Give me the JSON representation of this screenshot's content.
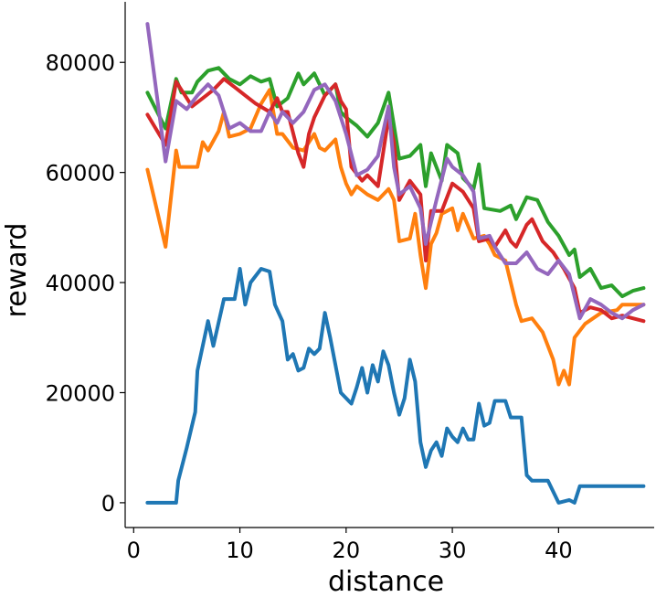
{
  "chart_data": {
    "type": "line",
    "title": "",
    "xlabel": "distance",
    "ylabel": "reward",
    "xlim": [
      -0.8,
      49
    ],
    "ylim": [
      -4500,
      91000
    ],
    "xticks": [
      0,
      10,
      20,
      30,
      40
    ],
    "yticks": [
      0,
      20000,
      40000,
      60000,
      80000
    ],
    "xtick_labels": [
      "0",
      "10",
      "20",
      "30",
      "40"
    ],
    "ytick_labels": [
      "0",
      "20000",
      "40000",
      "60000",
      "80000"
    ],
    "grid": false,
    "legend": "none",
    "series": [
      {
        "color": "#1f77b4",
        "points": [
          [
            1.3,
            0
          ],
          [
            4.0,
            0
          ],
          [
            4.2,
            4000
          ],
          [
            5.0,
            10000
          ],
          [
            5.8,
            16500
          ],
          [
            6.0,
            24000
          ],
          [
            6.5,
            28500
          ],
          [
            7.0,
            33000
          ],
          [
            7.5,
            28500
          ],
          [
            8.5,
            37000
          ],
          [
            9.5,
            37000
          ],
          [
            10.0,
            42500
          ],
          [
            10.5,
            36000
          ],
          [
            11.0,
            40000
          ],
          [
            12.0,
            42500
          ],
          [
            12.8,
            42000
          ],
          [
            13.3,
            36000
          ],
          [
            14.0,
            33000
          ],
          [
            14.5,
            26000
          ],
          [
            15.0,
            27000
          ],
          [
            15.5,
            24000
          ],
          [
            16.0,
            24500
          ],
          [
            16.5,
            28000
          ],
          [
            17.0,
            27000
          ],
          [
            17.5,
            28000
          ],
          [
            18.0,
            34500
          ],
          [
            18.5,
            30000
          ],
          [
            19.0,
            25000
          ],
          [
            19.5,
            20000
          ],
          [
            20.0,
            19000
          ],
          [
            20.5,
            18000
          ],
          [
            21.0,
            21000
          ],
          [
            21.5,
            24500
          ],
          [
            22.0,
            20000
          ],
          [
            22.5,
            25000
          ],
          [
            23.0,
            22000
          ],
          [
            23.5,
            27500
          ],
          [
            24.0,
            25000
          ],
          [
            24.5,
            20000
          ],
          [
            25.0,
            16000
          ],
          [
            25.5,
            19000
          ],
          [
            26.0,
            26000
          ],
          [
            26.5,
            22000
          ],
          [
            27.0,
            11000
          ],
          [
            27.5,
            6500
          ],
          [
            28.0,
            9500
          ],
          [
            28.5,
            11000
          ],
          [
            29.0,
            8500
          ],
          [
            29.5,
            13500
          ],
          [
            30.0,
            12000
          ],
          [
            30.5,
            11000
          ],
          [
            31.0,
            13500
          ],
          [
            31.5,
            11500
          ],
          [
            32.0,
            11500
          ],
          [
            32.5,
            18000
          ],
          [
            33.0,
            14000
          ],
          [
            33.5,
            14500
          ],
          [
            34.0,
            18500
          ],
          [
            35.0,
            18500
          ],
          [
            35.5,
            15500
          ],
          [
            36.5,
            15500
          ],
          [
            37.0,
            5000
          ],
          [
            37.5,
            4000
          ],
          [
            39.0,
            4000
          ],
          [
            40.0,
            0
          ],
          [
            41.0,
            500
          ],
          [
            41.5,
            0
          ],
          [
            42.0,
            3000
          ],
          [
            48.0,
            3000
          ]
        ]
      },
      {
        "color": "#ff7f0e",
        "points": [
          [
            1.3,
            60500
          ],
          [
            3.0,
            46500
          ],
          [
            4.0,
            64000
          ],
          [
            4.3,
            61000
          ],
          [
            6.0,
            61000
          ],
          [
            6.5,
            65500
          ],
          [
            7.0,
            64000
          ],
          [
            8.0,
            67500
          ],
          [
            8.5,
            71000
          ],
          [
            9.0,
            66500
          ],
          [
            10.0,
            67000
          ],
          [
            11.0,
            68000
          ],
          [
            12.0,
            72500
          ],
          [
            12.8,
            75000
          ],
          [
            13.5,
            67000
          ],
          [
            14.0,
            67000
          ],
          [
            15.0,
            64500
          ],
          [
            16.0,
            64000
          ],
          [
            17.0,
            67000
          ],
          [
            17.5,
            64500
          ],
          [
            18.0,
            64000
          ],
          [
            19.0,
            66000
          ],
          [
            19.5,
            61000
          ],
          [
            20.0,
            58000
          ],
          [
            20.5,
            56000
          ],
          [
            21.0,
            57500
          ],
          [
            22.0,
            56000
          ],
          [
            23.0,
            55000
          ],
          [
            24.0,
            57000
          ],
          [
            24.5,
            55000
          ],
          [
            25.0,
            47500
          ],
          [
            26.0,
            48000
          ],
          [
            26.5,
            52500
          ],
          [
            27.0,
            45000
          ],
          [
            27.5,
            39000
          ],
          [
            28.0,
            47000
          ],
          [
            28.5,
            49000
          ],
          [
            29.0,
            52500
          ],
          [
            30.0,
            53500
          ],
          [
            30.5,
            49500
          ],
          [
            31.0,
            52500
          ],
          [
            32.0,
            48000
          ],
          [
            33.0,
            48500
          ],
          [
            33.5,
            47000
          ],
          [
            34.0,
            45000
          ],
          [
            35.0,
            44000
          ],
          [
            36.0,
            36000
          ],
          [
            36.5,
            33000
          ],
          [
            37.5,
            33500
          ],
          [
            38.5,
            31000
          ],
          [
            39.5,
            26000
          ],
          [
            40.0,
            21500
          ],
          [
            40.5,
            24000
          ],
          [
            41.0,
            21500
          ],
          [
            41.5,
            30000
          ],
          [
            42.5,
            32500
          ],
          [
            44.0,
            34500
          ],
          [
            45.5,
            35000
          ],
          [
            46.0,
            36000
          ],
          [
            48.0,
            36000
          ]
        ]
      },
      {
        "color": "#2ca02c",
        "points": [
          [
            1.3,
            74500
          ],
          [
            3.0,
            68000
          ],
          [
            4.0,
            77000
          ],
          [
            4.5,
            74500
          ],
          [
            5.5,
            74500
          ],
          [
            6.0,
            76500
          ],
          [
            7.0,
            78500
          ],
          [
            8.0,
            79000
          ],
          [
            9.0,
            77000
          ],
          [
            10.0,
            76000
          ],
          [
            11.0,
            77500
          ],
          [
            12.0,
            76500
          ],
          [
            12.8,
            77000
          ],
          [
            13.5,
            72000
          ],
          [
            14.5,
            73500
          ],
          [
            15.5,
            78000
          ],
          [
            16.0,
            76000
          ],
          [
            17.0,
            78000
          ],
          [
            17.5,
            76000
          ],
          [
            18.0,
            74000
          ],
          [
            19.0,
            76000
          ],
          [
            19.5,
            71000
          ],
          [
            20.0,
            70000
          ],
          [
            21.0,
            68500
          ],
          [
            22.0,
            66500
          ],
          [
            23.0,
            69000
          ],
          [
            24.0,
            74500
          ],
          [
            24.5,
            68500
          ],
          [
            25.0,
            62500
          ],
          [
            26.0,
            63000
          ],
          [
            27.0,
            65000
          ],
          [
            27.5,
            57500
          ],
          [
            28.0,
            63500
          ],
          [
            29.0,
            58500
          ],
          [
            29.5,
            65000
          ],
          [
            30.5,
            63500
          ],
          [
            31.0,
            59000
          ],
          [
            32.0,
            57000
          ],
          [
            32.5,
            61500
          ],
          [
            33.0,
            53500
          ],
          [
            34.5,
            53000
          ],
          [
            35.5,
            54000
          ],
          [
            36.0,
            51500
          ],
          [
            37.0,
            55500
          ],
          [
            38.0,
            55000
          ],
          [
            38.5,
            53000
          ],
          [
            39.0,
            51000
          ],
          [
            40.0,
            48500
          ],
          [
            41.0,
            45000
          ],
          [
            41.5,
            46000
          ],
          [
            42.0,
            41000
          ],
          [
            43.0,
            42500
          ],
          [
            44.0,
            39000
          ],
          [
            45.0,
            39500
          ],
          [
            46.0,
            37500
          ],
          [
            47.0,
            38500
          ],
          [
            48.0,
            39000
          ]
        ]
      },
      {
        "color": "#d62728",
        "points": [
          [
            1.3,
            70500
          ],
          [
            3.0,
            65000
          ],
          [
            4.0,
            76500
          ],
          [
            5.5,
            72000
          ],
          [
            6.5,
            73500
          ],
          [
            7.5,
            75000
          ],
          [
            8.5,
            77000
          ],
          [
            9.5,
            75500
          ],
          [
            10.5,
            74000
          ],
          [
            11.5,
            72500
          ],
          [
            12.8,
            71000
          ],
          [
            13.5,
            73500
          ],
          [
            14.0,
            71000
          ],
          [
            14.5,
            71000
          ],
          [
            15.5,
            63500
          ],
          [
            16.0,
            61000
          ],
          [
            16.5,
            67000
          ],
          [
            17.0,
            70000
          ],
          [
            18.0,
            74000
          ],
          [
            19.0,
            76000
          ],
          [
            19.5,
            73000
          ],
          [
            20.0,
            71500
          ],
          [
            20.5,
            61000
          ],
          [
            21.5,
            58500
          ],
          [
            22.0,
            59500
          ],
          [
            23.0,
            57500
          ],
          [
            24.0,
            70000
          ],
          [
            24.5,
            65500
          ],
          [
            25.0,
            55000
          ],
          [
            26.0,
            58500
          ],
          [
            27.0,
            56000
          ],
          [
            27.5,
            44000
          ],
          [
            28.0,
            53000
          ],
          [
            29.0,
            53000
          ],
          [
            30.0,
            58000
          ],
          [
            31.0,
            56500
          ],
          [
            32.0,
            53500
          ],
          [
            32.5,
            47500
          ],
          [
            33.5,
            48000
          ],
          [
            34.0,
            46500
          ],
          [
            35.0,
            49500
          ],
          [
            35.5,
            47500
          ],
          [
            36.0,
            46500
          ],
          [
            37.0,
            50500
          ],
          [
            37.5,
            51500
          ],
          [
            38.5,
            47500
          ],
          [
            39.5,
            45500
          ],
          [
            40.5,
            42500
          ],
          [
            41.5,
            39000
          ],
          [
            42.0,
            34500
          ],
          [
            43.0,
            35500
          ],
          [
            44.0,
            35000
          ],
          [
            45.0,
            33500
          ],
          [
            46.0,
            34000
          ],
          [
            47.0,
            33500
          ],
          [
            48.0,
            33000
          ]
        ]
      },
      {
        "color": "#9467bd",
        "points": [
          [
            1.3,
            87000
          ],
          [
            3.0,
            62000
          ],
          [
            4.0,
            73000
          ],
          [
            5.0,
            71500
          ],
          [
            6.0,
            74000
          ],
          [
            7.0,
            76000
          ],
          [
            8.0,
            74000
          ],
          [
            9.0,
            68000
          ],
          [
            10.0,
            69000
          ],
          [
            11.0,
            67500
          ],
          [
            12.0,
            67500
          ],
          [
            12.8,
            71000
          ],
          [
            13.5,
            69000
          ],
          [
            14.0,
            71000
          ],
          [
            15.0,
            69000
          ],
          [
            16.0,
            71000
          ],
          [
            17.0,
            75000
          ],
          [
            18.0,
            76000
          ],
          [
            19.0,
            73000
          ],
          [
            20.0,
            67000
          ],
          [
            21.0,
            59500
          ],
          [
            22.0,
            60500
          ],
          [
            23.0,
            63000
          ],
          [
            24.0,
            72000
          ],
          [
            24.5,
            61000
          ],
          [
            25.0,
            56000
          ],
          [
            26.0,
            57500
          ],
          [
            27.0,
            53500
          ],
          [
            27.5,
            47000
          ],
          [
            28.5,
            55000
          ],
          [
            29.5,
            62500
          ],
          [
            30.0,
            61000
          ],
          [
            31.0,
            59500
          ],
          [
            32.0,
            56500
          ],
          [
            32.5,
            48000
          ],
          [
            33.5,
            48500
          ],
          [
            34.0,
            46500
          ],
          [
            35.0,
            43500
          ],
          [
            36.0,
            43500
          ],
          [
            37.0,
            45500
          ],
          [
            38.0,
            42500
          ],
          [
            39.0,
            41500
          ],
          [
            40.0,
            44000
          ],
          [
            41.0,
            41500
          ],
          [
            42.0,
            33500
          ],
          [
            43.0,
            37000
          ],
          [
            44.0,
            36000
          ],
          [
            45.0,
            34500
          ],
          [
            46.0,
            33500
          ],
          [
            47.0,
            35000
          ],
          [
            48.0,
            36000
          ]
        ]
      }
    ]
  }
}
